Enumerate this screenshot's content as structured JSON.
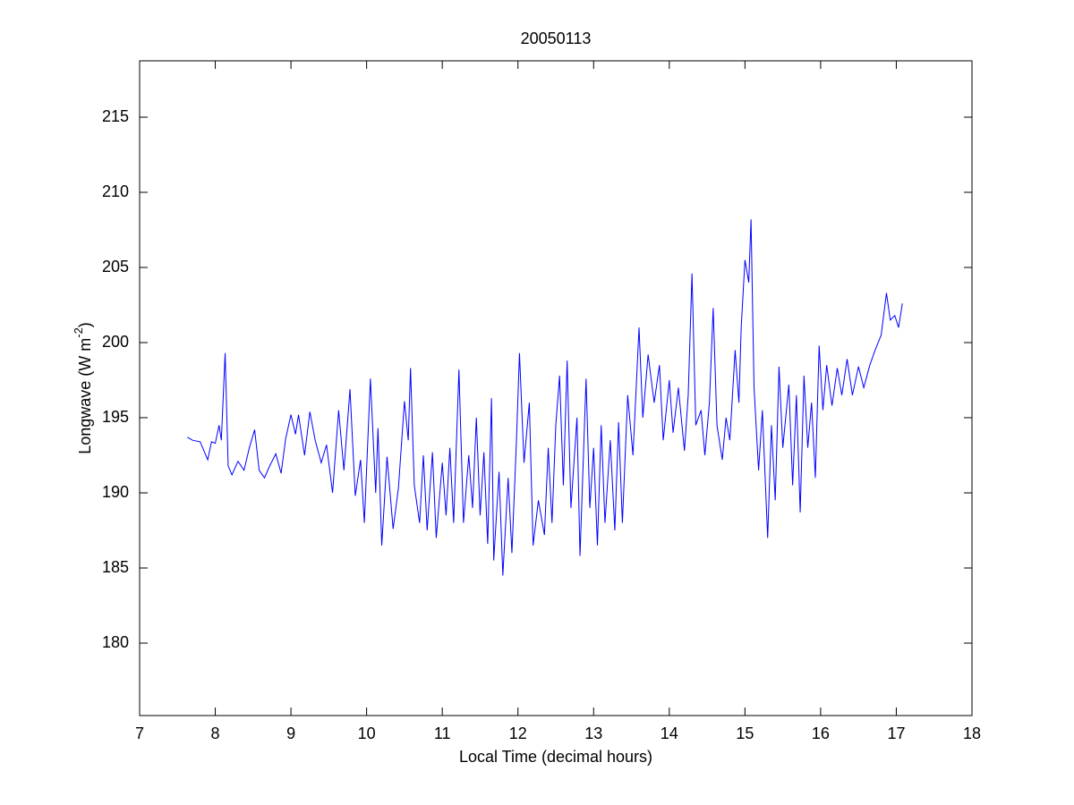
{
  "chart_data": {
    "type": "line",
    "title": "20050113",
    "xlabel": "Local Time (decimal hours)",
    "ylabel": [
      "Longwave (W m",
      "-2",
      ")"
    ],
    "xlim": [
      7,
      18
    ],
    "xticks": [
      7,
      8,
      9,
      10,
      11,
      12,
      13,
      14,
      15,
      16,
      17,
      18
    ],
    "ylim": [
      175.18,
      218.75
    ],
    "yticks": [
      180,
      185,
      190,
      195,
      200,
      205,
      210,
      215
    ],
    "grid": false,
    "series": [
      {
        "color": "#0000ff",
        "x": [
          7.63,
          7.7,
          7.8,
          7.9,
          7.95,
          8.0,
          8.05,
          8.08,
          8.13,
          8.17,
          8.22,
          8.3,
          8.38,
          8.45,
          8.52,
          8.58,
          8.65,
          8.72,
          8.8,
          8.87,
          8.93,
          9.0,
          9.06,
          9.1,
          9.18,
          9.25,
          9.32,
          9.4,
          9.47,
          9.55,
          9.63,
          9.7,
          9.78,
          9.85,
          9.92,
          9.97,
          10.05,
          10.12,
          10.15,
          10.2,
          10.27,
          10.35,
          10.42,
          10.5,
          10.55,
          10.58,
          10.63,
          10.7,
          10.75,
          10.8,
          10.87,
          10.92,
          11.0,
          11.05,
          11.1,
          11.15,
          11.22,
          11.28,
          11.35,
          11.4,
          11.45,
          11.5,
          11.55,
          11.6,
          11.65,
          11.68,
          11.75,
          11.8,
          11.87,
          11.92,
          11.98,
          12.02,
          12.08,
          12.15,
          12.2,
          12.27,
          12.35,
          12.4,
          12.45,
          12.5,
          12.55,
          12.6,
          12.65,
          12.7,
          12.78,
          12.82,
          12.9,
          12.95,
          13.0,
          13.05,
          13.1,
          13.15,
          13.22,
          13.28,
          13.33,
          13.38,
          13.45,
          13.52,
          13.6,
          13.65,
          13.72,
          13.8,
          13.87,
          13.92,
          14.0,
          14.05,
          14.12,
          14.2,
          14.25,
          14.3,
          14.35,
          14.42,
          14.47,
          14.53,
          14.58,
          14.63,
          14.7,
          14.75,
          14.8,
          14.87,
          14.92,
          14.95,
          15.0,
          15.05,
          15.08,
          15.12,
          15.18,
          15.23,
          15.3,
          15.35,
          15.4,
          15.45,
          15.5,
          15.58,
          15.63,
          15.68,
          15.73,
          15.78,
          15.83,
          15.88,
          15.93,
          15.98,
          16.03,
          16.08,
          16.15,
          16.22,
          16.28,
          16.35,
          16.42,
          16.5,
          16.57,
          16.65,
          16.72,
          16.8,
          16.87,
          16.92,
          16.98,
          17.03,
          17.08
        ],
        "values": [
          193.7,
          193.5,
          193.4,
          192.2,
          193.4,
          193.3,
          194.5,
          193.5,
          199.3,
          191.8,
          191.2,
          192.1,
          191.5,
          193.0,
          194.2,
          191.5,
          191.0,
          191.8,
          192.6,
          191.3,
          193.6,
          195.2,
          193.9,
          195.2,
          192.5,
          195.4,
          193.5,
          192.0,
          193.2,
          190.0,
          195.5,
          191.5,
          196.9,
          189.8,
          192.2,
          188.0,
          197.6,
          190.0,
          194.3,
          186.5,
          192.4,
          187.6,
          190.3,
          196.1,
          193.5,
          198.3,
          190.5,
          188.0,
          192.5,
          187.5,
          192.7,
          187.0,
          192.0,
          188.5,
          193.0,
          188.0,
          198.2,
          188.0,
          192.5,
          189.0,
          195.0,
          188.5,
          192.7,
          186.6,
          196.3,
          185.5,
          191.4,
          184.5,
          191.0,
          186.0,
          193.5,
          199.3,
          192.0,
          196.0,
          186.5,
          189.5,
          187.2,
          193.0,
          188.0,
          194.5,
          197.8,
          190.5,
          198.8,
          189.0,
          195.0,
          185.8,
          197.6,
          189.0,
          193.0,
          186.5,
          194.5,
          188.0,
          193.5,
          187.5,
          194.7,
          188.0,
          196.5,
          192.5,
          201.0,
          195.0,
          199.2,
          196.0,
          198.5,
          193.5,
          197.5,
          194.0,
          197.0,
          192.8,
          196.5,
          204.6,
          194.5,
          195.5,
          192.5,
          196.0,
          202.3,
          194.5,
          192.2,
          195.0,
          193.5,
          199.5,
          196.0,
          201.0,
          205.5,
          204.0,
          208.2,
          197.0,
          191.5,
          195.5,
          187.0,
          194.5,
          189.5,
          198.4,
          193.0,
          197.2,
          190.5,
          196.5,
          188.7,
          197.8,
          193.0,
          196.0,
          191.0,
          199.8,
          195.5,
          198.5,
          195.8,
          198.3,
          196.5,
          198.9,
          196.5,
          198.4,
          197.0,
          198.5,
          199.5,
          200.5,
          203.3,
          201.5,
          201.8,
          201.0,
          202.6
        ]
      }
    ]
  }
}
